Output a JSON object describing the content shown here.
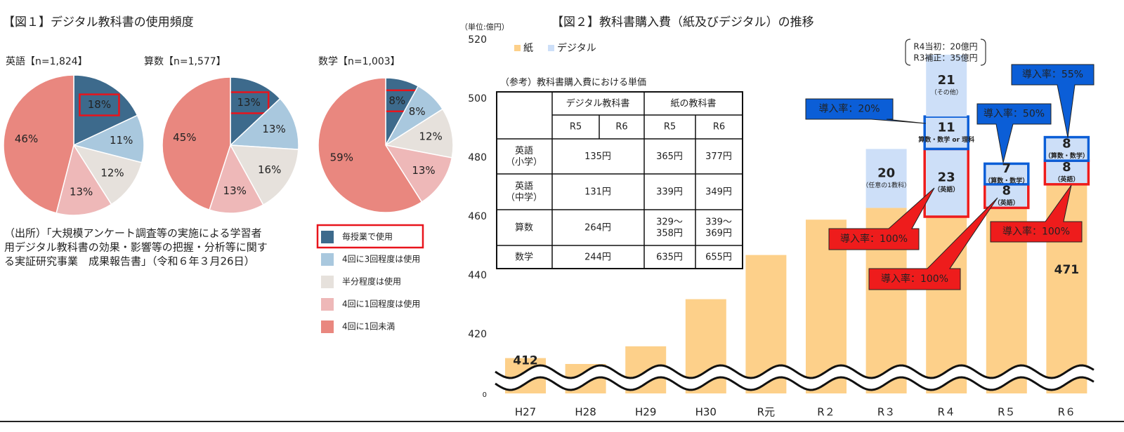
{
  "figure1": {
    "title": "【図１】デジタル教科書の使用頻度",
    "source": [
      "（出所）「大規模アンケート調査等の実施による学習者",
      "用デジタル教科書の効果・影響等の把握・分析等に関す",
      "る実証研究事業　成果報告書」（令和６年３月26日）"
    ],
    "legend": {
      "labels": [
        "毎授業で使用",
        "4回に3回程度は使用",
        "半分程度は使用",
        "4回に1回程度は使用",
        "4回に1回未満"
      ],
      "colors": [
        "#3d6a8c",
        "#a9c8de",
        "#e6e1dc",
        "#eeb8b8",
        "#e9877f"
      ]
    }
  },
  "figure2": {
    "title": "【図２】教科書購入費（紙及びデジタル）の推移",
    "unit": "（単位:億円）",
    "budget_note": [
      "R4当初：20億円",
      "R3補正：35億円"
    ],
    "callouts": [
      {
        "text": "導入率：20%",
        "color": "#0b5ed7"
      },
      {
        "text": "導入率：50%",
        "color": "#0b5ed7"
      },
      {
        "text": "導入率：55%",
        "color": "#0b5ed7"
      },
      {
        "text": "導入率：100%",
        "color": "#ee1c1c"
      },
      {
        "text": "導入率：100%",
        "color": "#ee1c1c"
      },
      {
        "text": "導入率：100%",
        "color": "#ee1c1c"
      }
    ],
    "table": {
      "caption": "（参考）教科書購入費における単価",
      "header": [
        "デジタル教科書",
        "紙の教科書"
      ],
      "subheader": [
        "R5",
        "R6",
        "R5",
        "R6"
      ],
      "rows": [
        [
          "英語\n（小学）",
          "135円",
          "365円",
          "377円"
        ],
        [
          "英語\n（中学）",
          "131円",
          "339円",
          "349円"
        ],
        [
          "算数",
          "264円",
          "329〜\n358円",
          "339〜\n369円"
        ],
        [
          "数学",
          "244円",
          "635円",
          "655円"
        ]
      ]
    }
  },
  "chart_data": [
    {
      "type": "pie",
      "title": "英語【n=1,824】",
      "values": [
        18,
        11,
        12,
        13,
        46
      ],
      "value_labels": [
        "18%",
        "11%",
        "12%",
        "13%",
        "46%"
      ]
    },
    {
      "type": "pie",
      "title": "算数【n=1,577】",
      "values": [
        13,
        13,
        16,
        13,
        45
      ],
      "value_labels": [
        "13%",
        "13%",
        "16%",
        "13%",
        "45%"
      ]
    },
    {
      "type": "pie",
      "title": "数学【n=1,003】",
      "values": [
        8,
        8,
        12,
        13,
        59
      ],
      "value_labels": [
        "8%",
        "8%",
        "12%",
        "13%",
        "59%"
      ]
    },
    {
      "type": "stacked_bar",
      "categories": [
        "H27",
        "H28",
        "H29",
        "H30",
        "R元",
        "R２",
        "R３",
        "R４",
        "R５",
        "R６"
      ],
      "ylim": [
        400,
        520
      ],
      "yticks": [
        0,
        420,
        440,
        460,
        480,
        500,
        520
      ],
      "axis_break": true,
      "series": [
        {
          "name": "紙",
          "color": "#fdd08a",
          "values": [
            412,
            410,
            416,
            432,
            447,
            459,
            463,
            460,
            463,
            471
          ],
          "value_labels": [
            "412",
            null,
            null,
            null,
            null,
            null,
            null,
            null,
            null,
            "471"
          ]
        },
        {
          "name": "デジタル",
          "color": "#cddff8",
          "values": [
            null,
            null,
            null,
            null,
            null,
            null,
            20,
            23,
            8,
            8
          ],
          "notes": [
            null,
            null,
            null,
            null,
            null,
            null,
            "（任意の1教科）",
            "（英語）",
            "（英語）",
            "（英語）"
          ],
          "outline": [
            null,
            null,
            null,
            null,
            null,
            null,
            null,
            "#ee1c1c",
            "#ee1c1c",
            "#ee1c1c"
          ]
        },
        {
          "color": "#cddff8",
          "values": [
            null,
            null,
            null,
            null,
            null,
            null,
            null,
            11,
            7,
            8
          ],
          "notes": [
            null,
            null,
            null,
            null,
            null,
            null,
            null,
            "算数・数学 or 理科",
            "（算数・数学）",
            "（算数・数学）"
          ],
          "outline": [
            null,
            null,
            null,
            null,
            null,
            null,
            null,
            "#0b5ed7",
            "#0b5ed7",
            "#0b5ed7"
          ]
        },
        {
          "color": "#cddff8",
          "values": [
            null,
            null,
            null,
            null,
            null,
            null,
            null,
            21,
            null,
            null
          ],
          "notes": [
            null,
            null,
            null,
            null,
            null,
            null,
            null,
            "（その他）",
            null,
            null
          ],
          "outline": [
            null,
            null,
            null,
            null,
            null,
            null,
            null,
            null,
            null,
            null
          ]
        }
      ]
    }
  ]
}
